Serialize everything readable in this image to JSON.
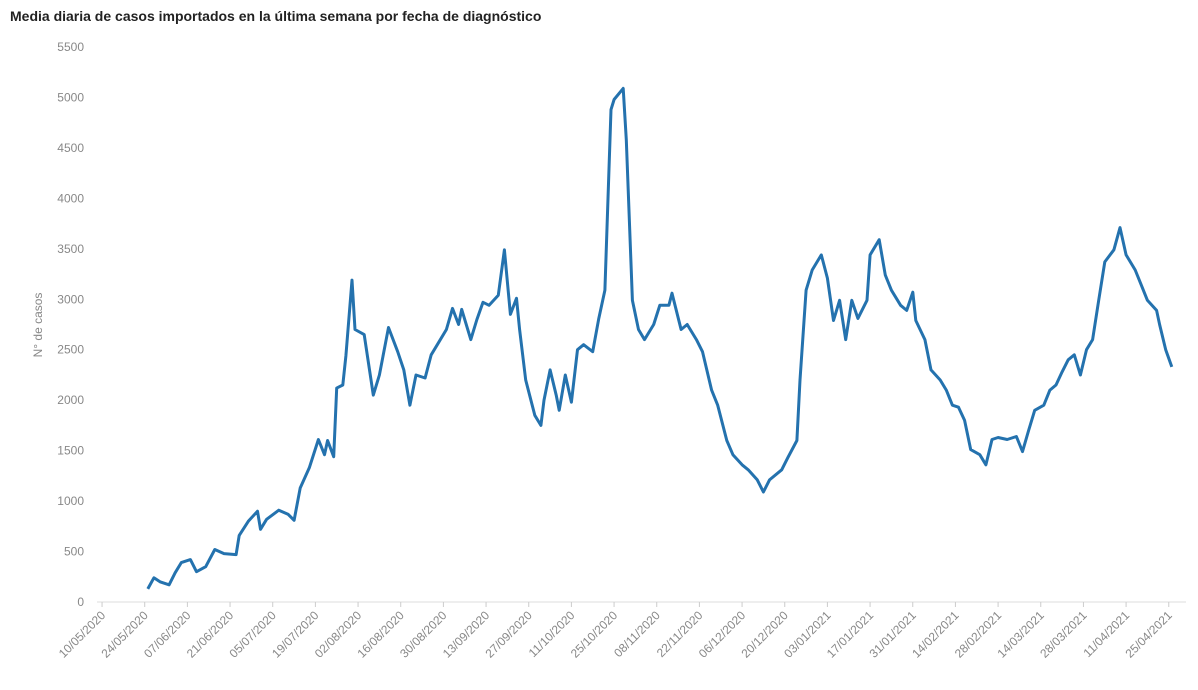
{
  "chart_data": {
    "type": "line",
    "title": "Media diaria de casos importados en la última semana por fecha de diagnóstico",
    "y_label": "N° de casos",
    "color": "#2472ae",
    "xlim": [
      "09/05/2020",
      "30/04/2021"
    ],
    "xticks": [
      "10/05/2020",
      "24/05/2020",
      "07/06/2020",
      "21/06/2020",
      "05/07/2020",
      "19/07/2020",
      "02/08/2020",
      "16/08/2020",
      "30/08/2020",
      "13/09/2020",
      "27/09/2020",
      "11/10/2020",
      "25/10/2020",
      "08/11/2020",
      "22/11/2020",
      "06/12/2020",
      "20/12/2020",
      "03/01/2021",
      "17/01/2021",
      "31/01/2021",
      "14/02/2021",
      "28/02/2021",
      "14/03/2021",
      "28/03/2021",
      "11/04/2021",
      "25/04/2021"
    ],
    "ylim": [
      0,
      5500
    ],
    "yticks": [
      0,
      500,
      1000,
      1500,
      2000,
      2500,
      3000,
      3500,
      4000,
      4500,
      5000,
      5500
    ],
    "x": [
      "25/05/2020",
      "27/05/2020",
      "29/05/2020",
      "01/06/2020",
      "03/06/2020",
      "05/06/2020",
      "08/06/2020",
      "10/06/2020",
      "13/06/2020",
      "16/06/2020",
      "19/06/2020",
      "23/06/2020",
      "24/06/2020",
      "27/06/2020",
      "30/06/2020",
      "01/07/2020",
      "03/07/2020",
      "07/07/2020",
      "10/07/2020",
      "12/07/2020",
      "14/07/2020",
      "17/07/2020",
      "20/07/2020",
      "22/07/2020",
      "23/07/2020",
      "25/07/2020",
      "26/07/2020",
      "28/07/2020",
      "29/07/2020",
      "31/07/2020",
      "01/08/2020",
      "04/08/2020",
      "07/08/2020",
      "09/08/2020",
      "12/08/2020",
      "15/08/2020",
      "17/08/2020",
      "19/08/2020",
      "21/08/2020",
      "24/08/2020",
      "26/08/2020",
      "28/08/2020",
      "31/08/2020",
      "02/09/2020",
      "04/09/2020",
      "05/09/2020",
      "08/09/2020",
      "10/09/2020",
      "12/09/2020",
      "14/09/2020",
      "17/09/2020",
      "19/09/2020",
      "21/09/2020",
      "23/09/2020",
      "24/09/2020",
      "26/09/2020",
      "29/09/2020",
      "01/10/2020",
      "02/10/2020",
      "04/10/2020",
      "06/10/2020",
      "07/10/2020",
      "09/10/2020",
      "11/10/2020",
      "13/10/2020",
      "15/10/2020",
      "18/10/2020",
      "20/10/2020",
      "22/10/2020",
      "24/10/2020",
      "25/10/2020",
      "28/10/2020",
      "29/10/2020",
      "31/10/2020",
      "02/11/2020",
      "04/11/2020",
      "07/11/2020",
      "09/11/2020",
      "12/11/2020",
      "13/11/2020",
      "16/11/2020",
      "18/11/2020",
      "21/11/2020",
      "23/11/2020",
      "26/11/2020",
      "28/11/2020",
      "01/12/2020",
      "03/12/2020",
      "06/12/2020",
      "08/12/2020",
      "11/12/2020",
      "13/12/2020",
      "15/12/2020",
      "19/12/2020",
      "21/12/2020",
      "24/12/2020",
      "25/12/2020",
      "27/12/2020",
      "29/12/2020",
      "01/01/2021",
      "03/01/2021",
      "05/01/2021",
      "07/01/2021",
      "09/01/2021",
      "11/01/2021",
      "13/01/2021",
      "16/01/2021",
      "17/01/2021",
      "20/01/2021",
      "22/01/2021",
      "24/01/2021",
      "27/01/2021",
      "29/01/2021",
      "31/01/2021",
      "01/02/2021",
      "04/02/2021",
      "06/02/2021",
      "09/02/2021",
      "11/02/2021",
      "13/02/2021",
      "15/02/2021",
      "17/02/2021",
      "19/02/2021",
      "22/02/2021",
      "24/02/2021",
      "26/02/2021",
      "28/02/2021",
      "03/03/2021",
      "06/03/2021",
      "08/03/2021",
      "10/03/2021",
      "12/03/2021",
      "15/03/2021",
      "17/03/2021",
      "19/03/2021",
      "21/03/2021",
      "23/03/2021",
      "25/03/2021",
      "27/03/2021",
      "29/03/2021",
      "31/03/2021",
      "02/04/2021",
      "04/04/2021",
      "07/04/2021",
      "09/04/2021",
      "11/04/2021",
      "13/04/2021",
      "14/04/2021",
      "16/04/2021",
      "18/04/2021",
      "21/04/2021",
      "22/04/2021",
      "24/04/2021",
      "26/04/2021"
    ],
    "values": [
      130,
      240,
      200,
      170,
      290,
      390,
      420,
      300,
      350,
      520,
      480,
      470,
      660,
      800,
      900,
      720,
      820,
      910,
      870,
      810,
      1130,
      1330,
      1610,
      1460,
      1600,
      1440,
      2120,
      2150,
      2440,
      3190,
      2700,
      2650,
      2050,
      2250,
      2720,
      2480,
      2300,
      1950,
      2250,
      2220,
      2450,
      2550,
      2700,
      2910,
      2750,
      2900,
      2600,
      2800,
      2970,
      2940,
      3040,
      3490,
      2850,
      3010,
      2700,
      2200,
      1850,
      1750,
      2000,
      2300,
      2050,
      1900,
      2250,
      1980,
      2500,
      2550,
      2480,
      2810,
      3090,
      4880,
      4980,
      5090,
      4580,
      2990,
      2700,
      2600,
      2750,
      2940,
      2940,
      3060,
      2700,
      2750,
      2600,
      2480,
      2100,
      1950,
      1600,
      1460,
      1360,
      1310,
      1210,
      1090,
      1210,
      1310,
      1430,
      1600,
      2200,
      3090,
      3290,
      3440,
      3210,
      2790,
      2990,
      2600,
      2990,
      2810,
      2990,
      3440,
      3590,
      3240,
      3090,
      2940,
      2890,
      3070,
      2790,
      2600,
      2300,
      2200,
      2100,
      1950,
      1930,
      1800,
      1510,
      1460,
      1360,
      1610,
      1630,
      1610,
      1640,
      1490,
      1700,
      1900,
      1950,
      2100,
      2150,
      2280,
      2400,
      2450,
      2250,
      2500,
      2600,
      2990,
      3370,
      3490,
      3710,
      3440,
      3340,
      3290,
      3140,
      2990,
      2890,
      2750,
      2500,
      2330
    ]
  }
}
